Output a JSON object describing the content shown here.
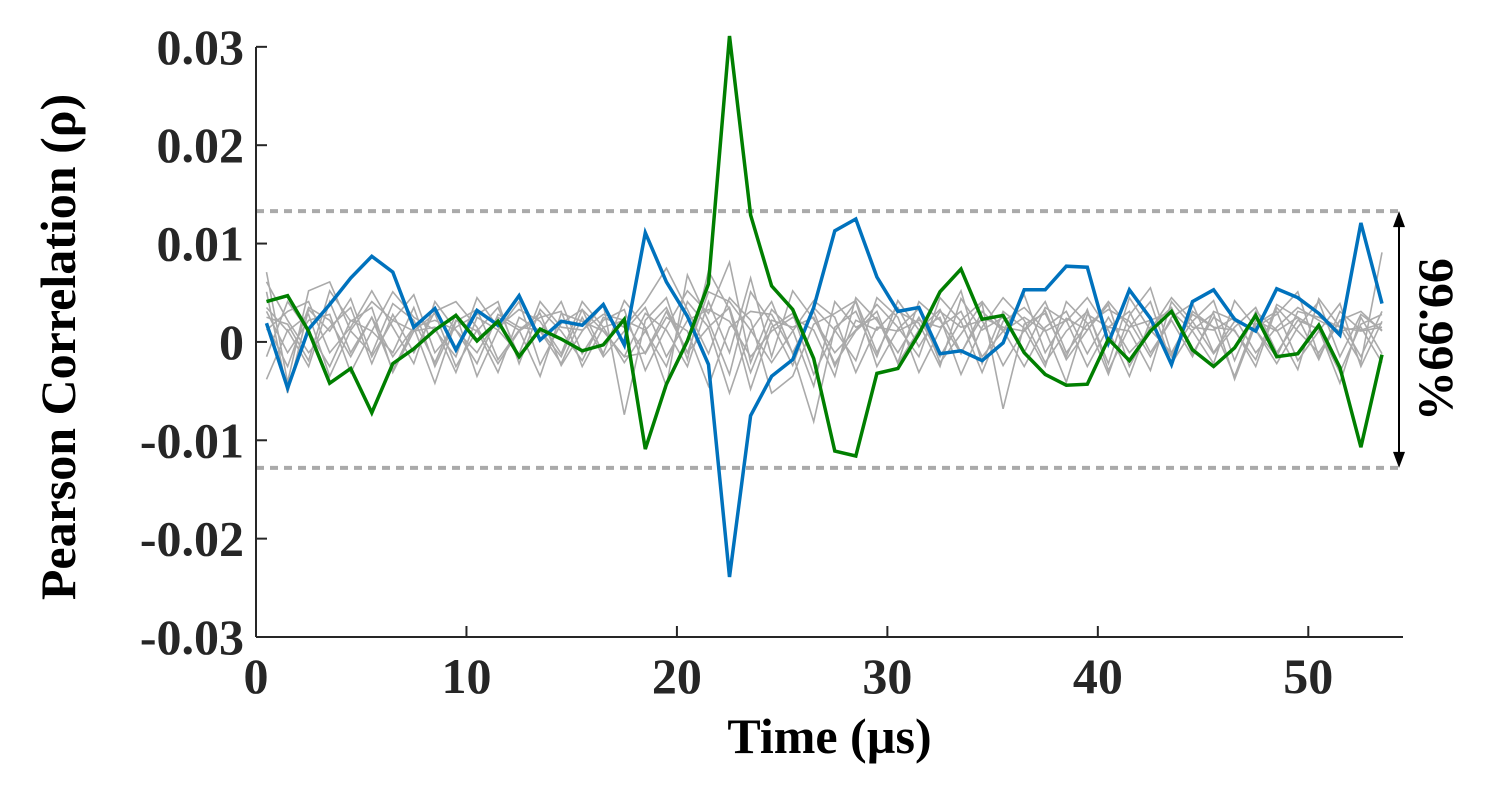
{
  "chart_data": {
    "type": "line",
    "title": "",
    "xlabel": "Time (µs)",
    "ylabel": "Pearson Correlation (ρ)",
    "xlim": [
      0,
      54.5
    ],
    "ylim": [
      -0.03,
      0.031
    ],
    "xticks": [
      0,
      10,
      20,
      30,
      40,
      50
    ],
    "yticks": [
      0.03,
      0.02,
      0.01,
      0,
      -0.01,
      -0.02,
      -0.03
    ],
    "ytick_labels": [
      "0.03",
      "0.02",
      "0.01",
      "0",
      "-0.01",
      "-0.02",
      "-0.03"
    ],
    "grid": false,
    "legend": "none",
    "x": [
      0.5,
      1.5,
      2.5,
      3.5,
      4.5,
      5.5,
      6.5,
      7.5,
      8.5,
      9.5,
      10.5,
      11.5,
      12.5,
      13.5,
      14.5,
      15.5,
      16.5,
      17.5,
      18.5,
      19.5,
      20.5,
      21.5,
      22.5,
      23.5,
      24.5,
      25.5,
      26.5,
      27.5,
      28.5,
      29.5,
      30.5,
      31.5,
      32.5,
      33.5,
      34.5,
      35.5,
      36.5,
      37.5,
      38.5,
      39.5,
      40.5,
      41.5,
      42.5,
      43.5,
      44.5,
      45.5,
      46.5,
      47.5,
      48.5,
      49.5,
      50.5,
      51.5,
      52.5,
      53.5
    ],
    "threshold": {
      "upper": 0.0133,
      "lower": -0.0128,
      "label": "99.99%",
      "color": "#aaaaaa"
    },
    "highlight_series": [
      {
        "color": "#0072bd",
        "values": [
          0.0019,
          -0.0047,
          0.0013,
          0.0038,
          0.0065,
          0.0087,
          0.0071,
          0.0015,
          0.0034,
          -0.0008,
          0.0032,
          0.0017,
          0.0047,
          0.0002,
          0.0021,
          0.0017,
          0.0038,
          -0.0003,
          0.0111,
          0.0061,
          0.0026,
          -0.0023,
          -0.0239,
          -0.0075,
          -0.0035,
          -0.0018,
          0.0035,
          0.0113,
          0.0125,
          0.0066,
          0.0031,
          0.0035,
          -0.0012,
          -0.0009,
          -0.0019,
          -0.0001,
          0.0053,
          0.0053,
          0.0077,
          0.0076,
          -0.0001,
          0.0053,
          0.0024,
          -0.0023,
          0.0041,
          0.0053,
          0.0023,
          0.0011,
          0.0054,
          0.0045,
          0.0029,
          0.0007,
          0.0121,
          0.0039
        ]
      },
      {
        "color": "#007f00",
        "values": [
          0.0041,
          0.0047,
          0.0011,
          -0.0042,
          -0.0027,
          -0.0072,
          -0.0022,
          -0.0007,
          0.0012,
          0.0027,
          0.0001,
          0.0021,
          -0.0015,
          0.0013,
          0.0003,
          -0.0009,
          -0.0003,
          0.0023,
          -0.0109,
          -0.0043,
          0.0001,
          0.0059,
          0.0311,
          0.0129,
          0.0057,
          0.0033,
          -0.0017,
          -0.0111,
          -0.0116,
          -0.0032,
          -0.0027,
          0.0008,
          0.0051,
          0.0074,
          0.0023,
          0.0027,
          -0.0011,
          -0.0033,
          -0.0044,
          -0.0043,
          0.0003,
          -0.0019,
          0.0011,
          0.0031,
          -0.0008,
          -0.0025,
          -0.0006,
          0.0027,
          -0.0015,
          -0.0012,
          0.0017,
          -0.0026,
          -0.0107,
          -0.0013
        ]
      }
    ],
    "background_series": [
      {
        "color": "#aaaaaa",
        "values": [
          0.0071,
          -0.0041,
          0.0052,
          0.0061,
          0.0011,
          -0.0012,
          0.0039,
          0.0022,
          -0.0021,
          0.0028,
          -0.0035,
          0.0012,
          0.0041,
          -0.0023,
          0.0019,
          0.0033,
          -0.0012,
          0.0042,
          0.0015,
          -0.0045,
          0.0068,
          0.0021,
          -0.0033,
          0.0051,
          0.0019,
          -0.0024,
          0.0035,
          0.0012,
          -0.0019,
          0.0045,
          0.0025,
          -0.0031,
          0.0012,
          0.0052,
          -0.0022,
          0.0031,
          0.0014,
          -0.0025,
          0.0041,
          0.0019,
          -0.0033,
          0.0027,
          0.0055,
          -0.0012,
          0.0021,
          0.0042,
          -0.0019,
          0.0031,
          0.0012,
          -0.0028,
          0.0044,
          0.0015,
          -0.0021,
          0.0091
        ]
      },
      {
        "color": "#aaaaaa",
        "values": [
          -0.0038,
          0.0012,
          -0.0025,
          0.0041,
          -0.0011,
          0.0025,
          -0.0029,
          0.0015,
          -0.0042,
          0.0021,
          0.0033,
          -0.0018,
          0.0012,
          0.0029,
          -0.0024,
          0.0011,
          0.0038,
          -0.0074,
          0.0022,
          0.0045,
          -0.0018,
          0.0072,
          0.0033,
          -0.0048,
          0.0015,
          0.0029,
          -0.0033,
          0.0011,
          0.0041,
          -0.0025,
          0.0013,
          0.0034,
          -0.0021,
          0.0008,
          0.0039,
          -0.0068,
          0.0018,
          0.0029,
          -0.0015,
          0.0033,
          -0.0029,
          0.0015,
          0.0041,
          -0.0022,
          0.0012,
          0.0029,
          -0.0038,
          0.0018,
          0.0031,
          -0.0019,
          0.0011,
          0.0039,
          -0.0025,
          0.0021
        ]
      },
      {
        "color": "#aaaaaa",
        "values": [
          0.0051,
          -0.0052,
          0.0033,
          0.0011,
          0.0044,
          -0.0015,
          0.0022,
          0.0048,
          -0.0011,
          0.0015,
          0.0028,
          0.0041,
          -0.0022,
          0.0033,
          0.0011,
          -0.0019,
          0.0025,
          0.0015,
          0.0041,
          0.0075,
          0.0033,
          -0.0012,
          0.0045,
          0.0022,
          -0.0052,
          -0.0035,
          0.0018,
          0.0029,
          0.0042,
          -0.0011,
          0.0031,
          0.0019,
          -0.0025,
          0.0044,
          0.0012,
          0.0025,
          -0.0011,
          0.0035,
          0.0021,
          0.0045,
          0.0012,
          -0.0035,
          0.0022,
          0.0031,
          0.0011,
          -0.0022,
          0.0042,
          0.0015,
          0.0028,
          0.0051,
          -0.0015,
          0.0022,
          0.0031,
          0.0011
        ]
      },
      {
        "color": "#aaaaaa",
        "values": [
          0.0025,
          0.0018,
          -0.0019,
          0.0052,
          0.0021,
          0.0035,
          -0.0031,
          0.0011,
          0.0029,
          -0.0025,
          0.0012,
          -0.0031,
          0.0025,
          0.0011,
          0.0041,
          -0.0012,
          0.0022,
          0.0033,
          -0.0029,
          0.0015,
          0.0052,
          0.0029,
          0.0081,
          -0.0021,
          0.0033,
          0.0012,
          -0.0045,
          0.0041,
          0.0015,
          0.0025,
          -0.0021,
          0.0041,
          0.0022,
          -0.0012,
          0.0031,
          0.0011,
          0.0048,
          -0.0011,
          0.0024,
          0.0012,
          0.0038,
          -0.0025,
          0.0015,
          0.0035,
          -0.0012,
          0.0025,
          0.0011,
          -0.0018,
          0.0038,
          0.0025,
          0.0012,
          -0.0031,
          0.0018,
          0.0028
        ]
      },
      {
        "color": "#aaaaaa",
        "values": [
          0.0012,
          0.0031,
          0.0041,
          -0.0011,
          0.0015,
          0.0052,
          0.0015,
          -0.0022,
          0.0041,
          0.0012,
          -0.0011,
          0.0025,
          0.0012,
          -0.0035,
          0.0029,
          0.0021,
          0.0011,
          -0.0015,
          0.0029,
          0.0012,
          -0.0025,
          0.0041,
          -0.0011,
          0.0065,
          -0.0015,
          0.0052,
          0.0023,
          -0.0011,
          0.0012,
          0.0038,
          0.0015,
          -0.0015,
          0.0045,
          0.0021,
          -0.0031,
          0.0021,
          0.0035,
          0.0012,
          -0.0041,
          0.0028,
          0.0015,
          0.0011,
          -0.0029,
          0.0041,
          0.0015,
          0.0012,
          0.0025,
          -0.0011,
          0.0015,
          0.0035,
          0.0022,
          0.0011,
          0.0015,
          -0.0021
        ]
      },
      {
        "color": "#aaaaaa",
        "values": [
          0.0031,
          -0.0011,
          0.0022,
          0.0028,
          -0.0031,
          0.0011,
          0.0051,
          0.0025,
          0.0012,
          -0.0015,
          0.0045,
          0.0015,
          0.0033,
          0.0021,
          -0.0012,
          0.0041,
          0.0015,
          0.0022,
          -0.0012,
          0.0025,
          0.0011,
          -0.0045,
          0.0015,
          0.0031,
          0.0028,
          -0.0011,
          0.0031,
          -0.0025,
          0.0022,
          0.0012,
          0.0035,
          -0.0005,
          0.0031,
          0.0015,
          0.0022,
          -0.0024,
          0.0012,
          0.0041,
          -0.0011,
          0.0018,
          0.0033,
          0.0021,
          -0.0015,
          0.0025,
          0.0039,
          -0.0011,
          0.0021,
          0.0012,
          -0.0022,
          0.0015,
          0.0041,
          -0.0015,
          0.0028,
          0.0012
        ]
      },
      {
        "color": "#aaaaaa",
        "values": [
          0.0061,
          0.0022,
          -0.0011,
          0.0015,
          0.0035,
          -0.0022,
          0.0028,
          -0.0011,
          0.0031,
          0.0041,
          0.0015,
          -0.0022,
          0.0011,
          0.0025,
          0.0031,
          -0.0025,
          0.0015,
          -0.0021,
          0.0011,
          -0.0025,
          0.0041,
          0.0015,
          -0.0052,
          0.0011,
          0.0041,
          -0.0012,
          -0.0081,
          0.0015,
          0.0031,
          -0.0015,
          0.0042,
          0.0012,
          0.0025,
          -0.0033,
          0.0015,
          0.0045,
          0.0022,
          -0.0021,
          0.0011,
          0.0031,
          -0.0022,
          0.0045,
          0.0012,
          -0.0011,
          0.0028,
          0.0015,
          -0.0035,
          0.0022,
          0.0011,
          0.0025,
          -0.0018,
          0.0031,
          0.0012,
          0.0019
        ]
      },
      {
        "color": "#aaaaaa",
        "values": [
          -0.0015,
          0.0041,
          0.0011,
          -0.0025,
          0.0022,
          0.0011,
          -0.0011,
          0.0035,
          -0.0025,
          0.0022,
          0.0011,
          0.0035,
          -0.0015,
          0.0011,
          -0.0022,
          0.0025,
          -0.0015,
          0.0011,
          0.0035,
          -0.0015,
          0.0022,
          0.0033,
          0.0021,
          -0.0015,
          0.0011,
          0.0025,
          0.0012,
          -0.0035,
          0.0045,
          0.0022,
          -0.0011,
          0.0025,
          -0.0015,
          0.0022,
          0.0041,
          0.0012,
          -0.0025,
          0.0015,
          0.0031,
          -0.0012,
          0.0025,
          -0.0011,
          0.0012,
          0.0045,
          0.0021,
          -0.0012,
          0.0015,
          0.0035,
          -0.0011,
          0.0022,
          0.0013,
          -0.0042,
          0.0025,
          -0.0012
        ]
      },
      {
        "color": "#aaaaaa",
        "values": [
          0.0035,
          0.0011,
          0.0028,
          -0.0035,
          0.0012,
          0.0041,
          0.0022,
          0.0011,
          0.0015,
          -0.0031,
          0.0025,
          0.0012,
          -0.0012,
          0.0041,
          0.0015,
          0.0012,
          0.0028,
          0.0022,
          0.0012,
          0.0035,
          -0.0011,
          0.0015,
          0.0035,
          -0.0031,
          0.0022,
          0.0015,
          0.0025,
          -0.0022,
          0.0011,
          0.0031,
          -0.0022,
          0.0012,
          0.0033,
          -0.0011,
          0.0025,
          0.0015,
          0.0011,
          0.0032,
          -0.0018,
          0.0012,
          0.0041,
          0.0015,
          0.0022,
          -0.0015,
          0.0031,
          0.0015,
          0.0012,
          -0.0025,
          0.0035,
          0.0011,
          -0.0011,
          0.0022,
          -0.0015,
          0.0031
        ]
      },
      {
        "color": "#aaaaaa",
        "values": [
          0.0018,
          -0.0025,
          0.0035,
          0.0022,
          -0.0015,
          0.0025,
          -0.0015,
          0.0015,
          0.0022,
          0.0012,
          -0.0022,
          0.0028,
          0.0015,
          0.0012,
          -0.0015,
          0.0033,
          0.0011,
          -0.0015,
          -0.0011,
          0.0031,
          -0.0011,
          0.0051,
          0.0041,
          0.0012,
          -0.0021,
          0.0011,
          0.0042,
          0.0025,
          -0.0031,
          0.0015,
          0.0011,
          0.0022,
          0.0015,
          0.0031,
          -0.0015,
          0.0011,
          0.0025,
          0.0011,
          0.0022,
          -0.0025,
          0.0015,
          0.0031,
          -0.0011,
          0.0022,
          -0.0015,
          0.0031,
          0.0022,
          0.0012,
          -0.0015,
          0.0031,
          0.0025,
          0.0015,
          0.0011,
          0.0015
        ]
      }
    ]
  }
}
